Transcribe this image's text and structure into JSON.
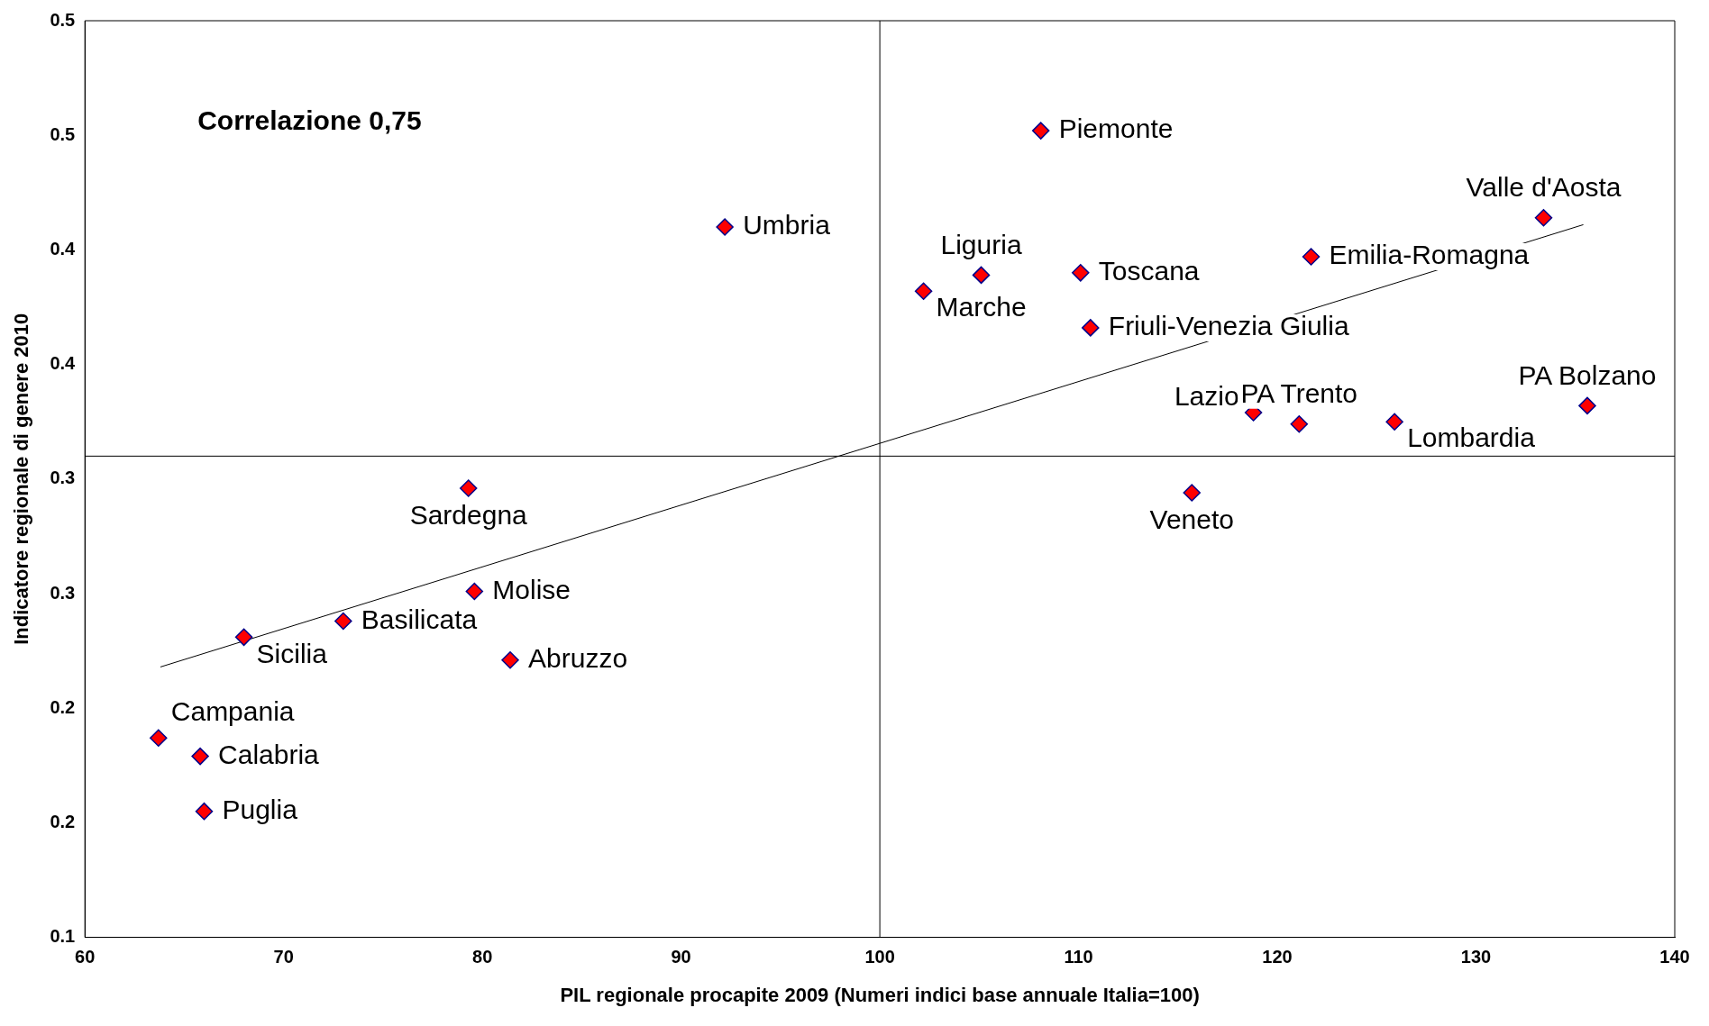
{
  "chart_data": {
    "type": "scatter",
    "xlabel": "PIL regionale procapite 2009 (Numeri indici base annuale Italia=100)",
    "ylabel": "Indicatore regionale di genere 2010",
    "xlim": [
      60,
      140
    ],
    "xticks": [
      60,
      70,
      80,
      90,
      100,
      110,
      120,
      130,
      140
    ],
    "ylim": [
      0.1,
      0.5
    ],
    "yticks": [
      {
        "value": 0.1,
        "label": "0.1"
      },
      {
        "value": 0.15,
        "label": "0.2"
      },
      {
        "value": 0.2,
        "label": "0.2"
      },
      {
        "value": 0.25,
        "label": "0.3"
      },
      {
        "value": 0.3,
        "label": "0.3"
      },
      {
        "value": 0.35,
        "label": "0.4"
      },
      {
        "value": 0.4,
        "label": "0.4"
      },
      {
        "value": 0.45,
        "label": "0.5"
      },
      {
        "value": 0.5,
        "label": "0.5"
      }
    ],
    "grid": false,
    "legend": false,
    "series": [
      {
        "type": "scatter",
        "marker": "diamond",
        "color": "#ff0000",
        "x": [
          92.2,
          108.1,
          133.4,
          105.1,
          110.1,
          102.2,
          121.7,
          110.6,
          118.8,
          121.1,
          125.9,
          135.6,
          115.7,
          79.3,
          79.6,
          73.0,
          68.0,
          81.4,
          63.7,
          65.8,
          66.0
        ],
        "values": [
          0.41,
          0.452,
          0.414,
          0.389,
          0.39,
          0.382,
          0.397,
          0.366,
          0.329,
          0.324,
          0.325,
          0.332,
          0.294,
          0.296,
          0.251,
          0.238,
          0.231,
          0.221,
          0.187,
          0.179,
          0.155
        ]
      },
      {
        "type": "line",
        "color": "#000000",
        "x": [
          63.8,
          135.4
        ],
        "values": [
          0.218,
          0.411
        ]
      }
    ],
    "ref_lines": [
      {
        "axis": "x",
        "value": 100,
        "color": "#000000"
      },
      {
        "axis": "y",
        "value": 0.31,
        "color": "#000000"
      }
    ],
    "annotations": [
      "Correlazione 0,75",
      {
        "text": "Umbria",
        "x": 92.2,
        "y": 0.41
      },
      {
        "text": "Piemonte",
        "x": 108.1,
        "y": 0.452
      },
      {
        "text": "Valle d'Aosta",
        "x": 133.4,
        "y": 0.414
      },
      {
        "text": "Liguria",
        "x": 105.1,
        "y": 0.389
      },
      {
        "text": "Toscana",
        "x": 110.1,
        "y": 0.39
      },
      {
        "text": "Marche",
        "x": 102.2,
        "y": 0.382
      },
      {
        "text": "Emilia-Romagna",
        "x": 121.7,
        "y": 0.397
      },
      {
        "text": "Friuli-Venezia Giulia",
        "x": 110.6,
        "y": 0.366
      },
      {
        "text": "Lazio",
        "x": 118.8,
        "y": 0.329
      },
      {
        "text": "PA Trento",
        "x": 121.1,
        "y": 0.324
      },
      {
        "text": "Lombardia",
        "x": 125.9,
        "y": 0.325
      },
      {
        "text": "PA Bolzano",
        "x": 135.6,
        "y": 0.332
      },
      {
        "text": "Veneto",
        "x": 115.7,
        "y": 0.294
      },
      {
        "text": "Sardegna",
        "x": 79.3,
        "y": 0.296
      },
      {
        "text": "Molise",
        "x": 79.6,
        "y": 0.251
      },
      {
        "text": "Basilicata",
        "x": 73.0,
        "y": 0.238
      },
      {
        "text": "Sicilia",
        "x": 68.0,
        "y": 0.231
      },
      {
        "text": "Abruzzo",
        "x": 81.4,
        "y": 0.221
      },
      {
        "text": "Campania",
        "x": 63.7,
        "y": 0.187
      },
      {
        "text": "Calabria",
        "x": 65.8,
        "y": 0.179
      },
      {
        "text": "Puglia",
        "x": 66.0,
        "y": 0.155
      }
    ]
  }
}
